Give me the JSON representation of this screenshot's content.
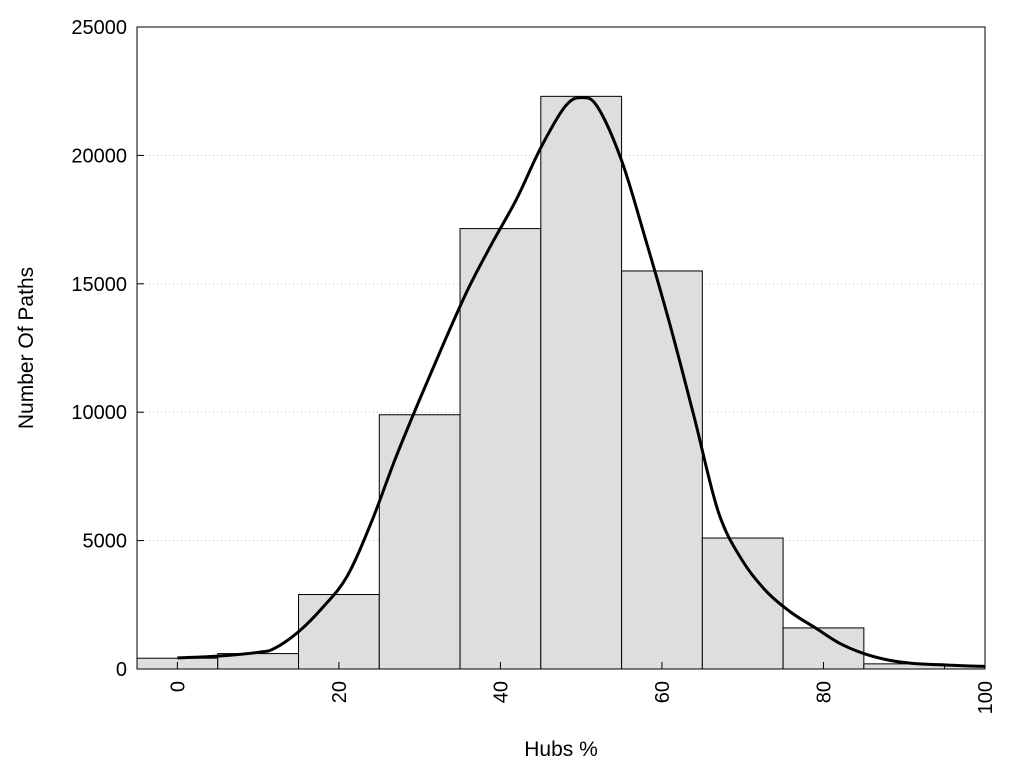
{
  "chart_data": {
    "type": "bar",
    "subtype": "histogram-with-density-curve",
    "title": "",
    "xlabel": "Hubs %",
    "ylabel": "Number Of Paths",
    "xlim": [
      -5,
      100
    ],
    "ylim": [
      0,
      25000
    ],
    "x_ticks": [
      0,
      20,
      40,
      60,
      80,
      100
    ],
    "y_ticks": [
      0,
      5000,
      10000,
      15000,
      20000,
      25000
    ],
    "grid": "horizontal dotted",
    "bin_width": 10,
    "bin_centers": [
      0,
      10,
      20,
      30,
      40,
      50,
      60,
      70,
      80,
      90,
      100
    ],
    "values": [
      420,
      600,
      2900,
      9900,
      17150,
      22300,
      15500,
      5100,
      1600,
      200,
      130
    ],
    "density_curve": {
      "x": [
        0,
        5,
        10,
        12,
        15,
        18,
        21,
        24,
        27,
        30,
        33,
        36,
        39,
        42,
        45,
        48,
        50,
        52,
        55,
        58,
        61,
        64,
        67,
        70,
        73,
        76,
        79,
        82,
        85,
        88,
        91,
        94,
        97,
        100
      ],
      "y": [
        430,
        500,
        650,
        800,
        1450,
        2400,
        3600,
        5700,
        8200,
        10500,
        12700,
        14800,
        16600,
        18300,
        20300,
        21900,
        22250,
        21900,
        19800,
        16700,
        13400,
        9800,
        6100,
        4200,
        3000,
        2200,
        1600,
        1000,
        600,
        350,
        220,
        170,
        130,
        100
      ]
    },
    "colors": {
      "bar_fill": "#dedede",
      "bar_stroke": "#000000",
      "curve": "#000000",
      "grid": "#bbbbbb"
    }
  }
}
